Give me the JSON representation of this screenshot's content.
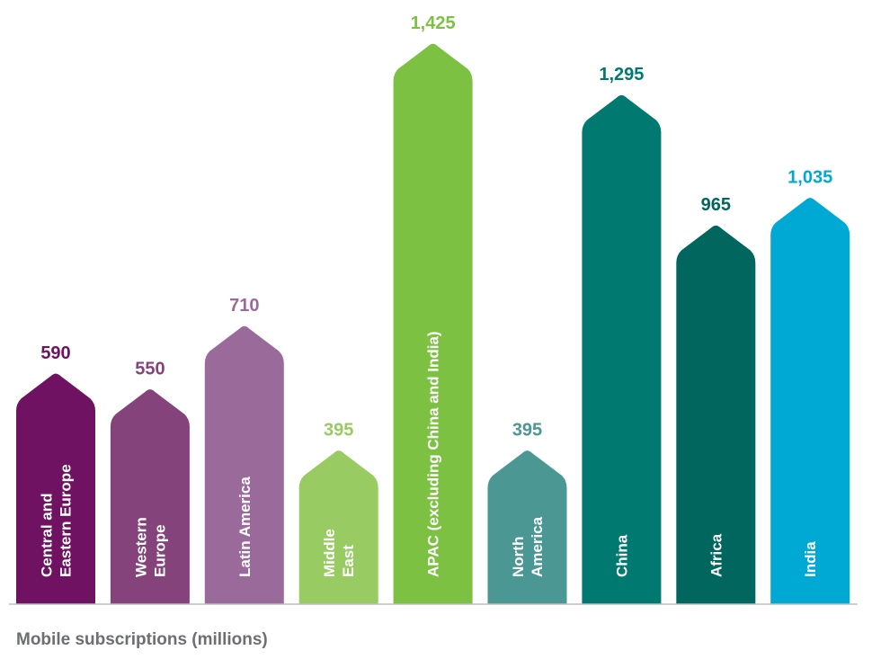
{
  "chart_data": {
    "type": "bar",
    "categories": [
      "Central and Eastern Europe",
      "Western Europe",
      "Latin America",
      "Middle East",
      "APAC (excluding China and India)",
      "North America",
      "China",
      "Africa",
      "India"
    ],
    "category_lines": [
      [
        "Central and",
        "Eastern Europe"
      ],
      [
        "Western",
        "Europe"
      ],
      [
        "Latin America"
      ],
      [
        "Middle",
        "East"
      ],
      [
        "APAC (excluding China and India)"
      ],
      [
        "North",
        "America"
      ],
      [
        "China"
      ],
      [
        "Africa"
      ],
      [
        "India"
      ]
    ],
    "values": [
      590,
      550,
      710,
      395,
      1425,
      395,
      1295,
      965,
      1035
    ],
    "value_labels": [
      "590",
      "550",
      "710",
      "395",
      "1,425",
      "395",
      "1,295",
      "965",
      "1,035"
    ],
    "colors": [
      "#6e1261",
      "#85437b",
      "#9a6a9a",
      "#98cc62",
      "#7cc142",
      "#4b9793",
      "#007a70",
      "#00665e",
      "#00a9d4"
    ],
    "label_colors": [
      "#6e1261",
      "#85437b",
      "#9a6a9a",
      "#98cc62",
      "#7cc142",
      "#4b9793",
      "#007a70",
      "#00665e",
      "#00a9d4"
    ],
    "xlabel": "Mobile subscriptions (millions)",
    "ylabel": "",
    "ylim": [
      0,
      1425
    ],
    "grid": false,
    "legend": "none",
    "bar_shape": "arrow-up"
  }
}
